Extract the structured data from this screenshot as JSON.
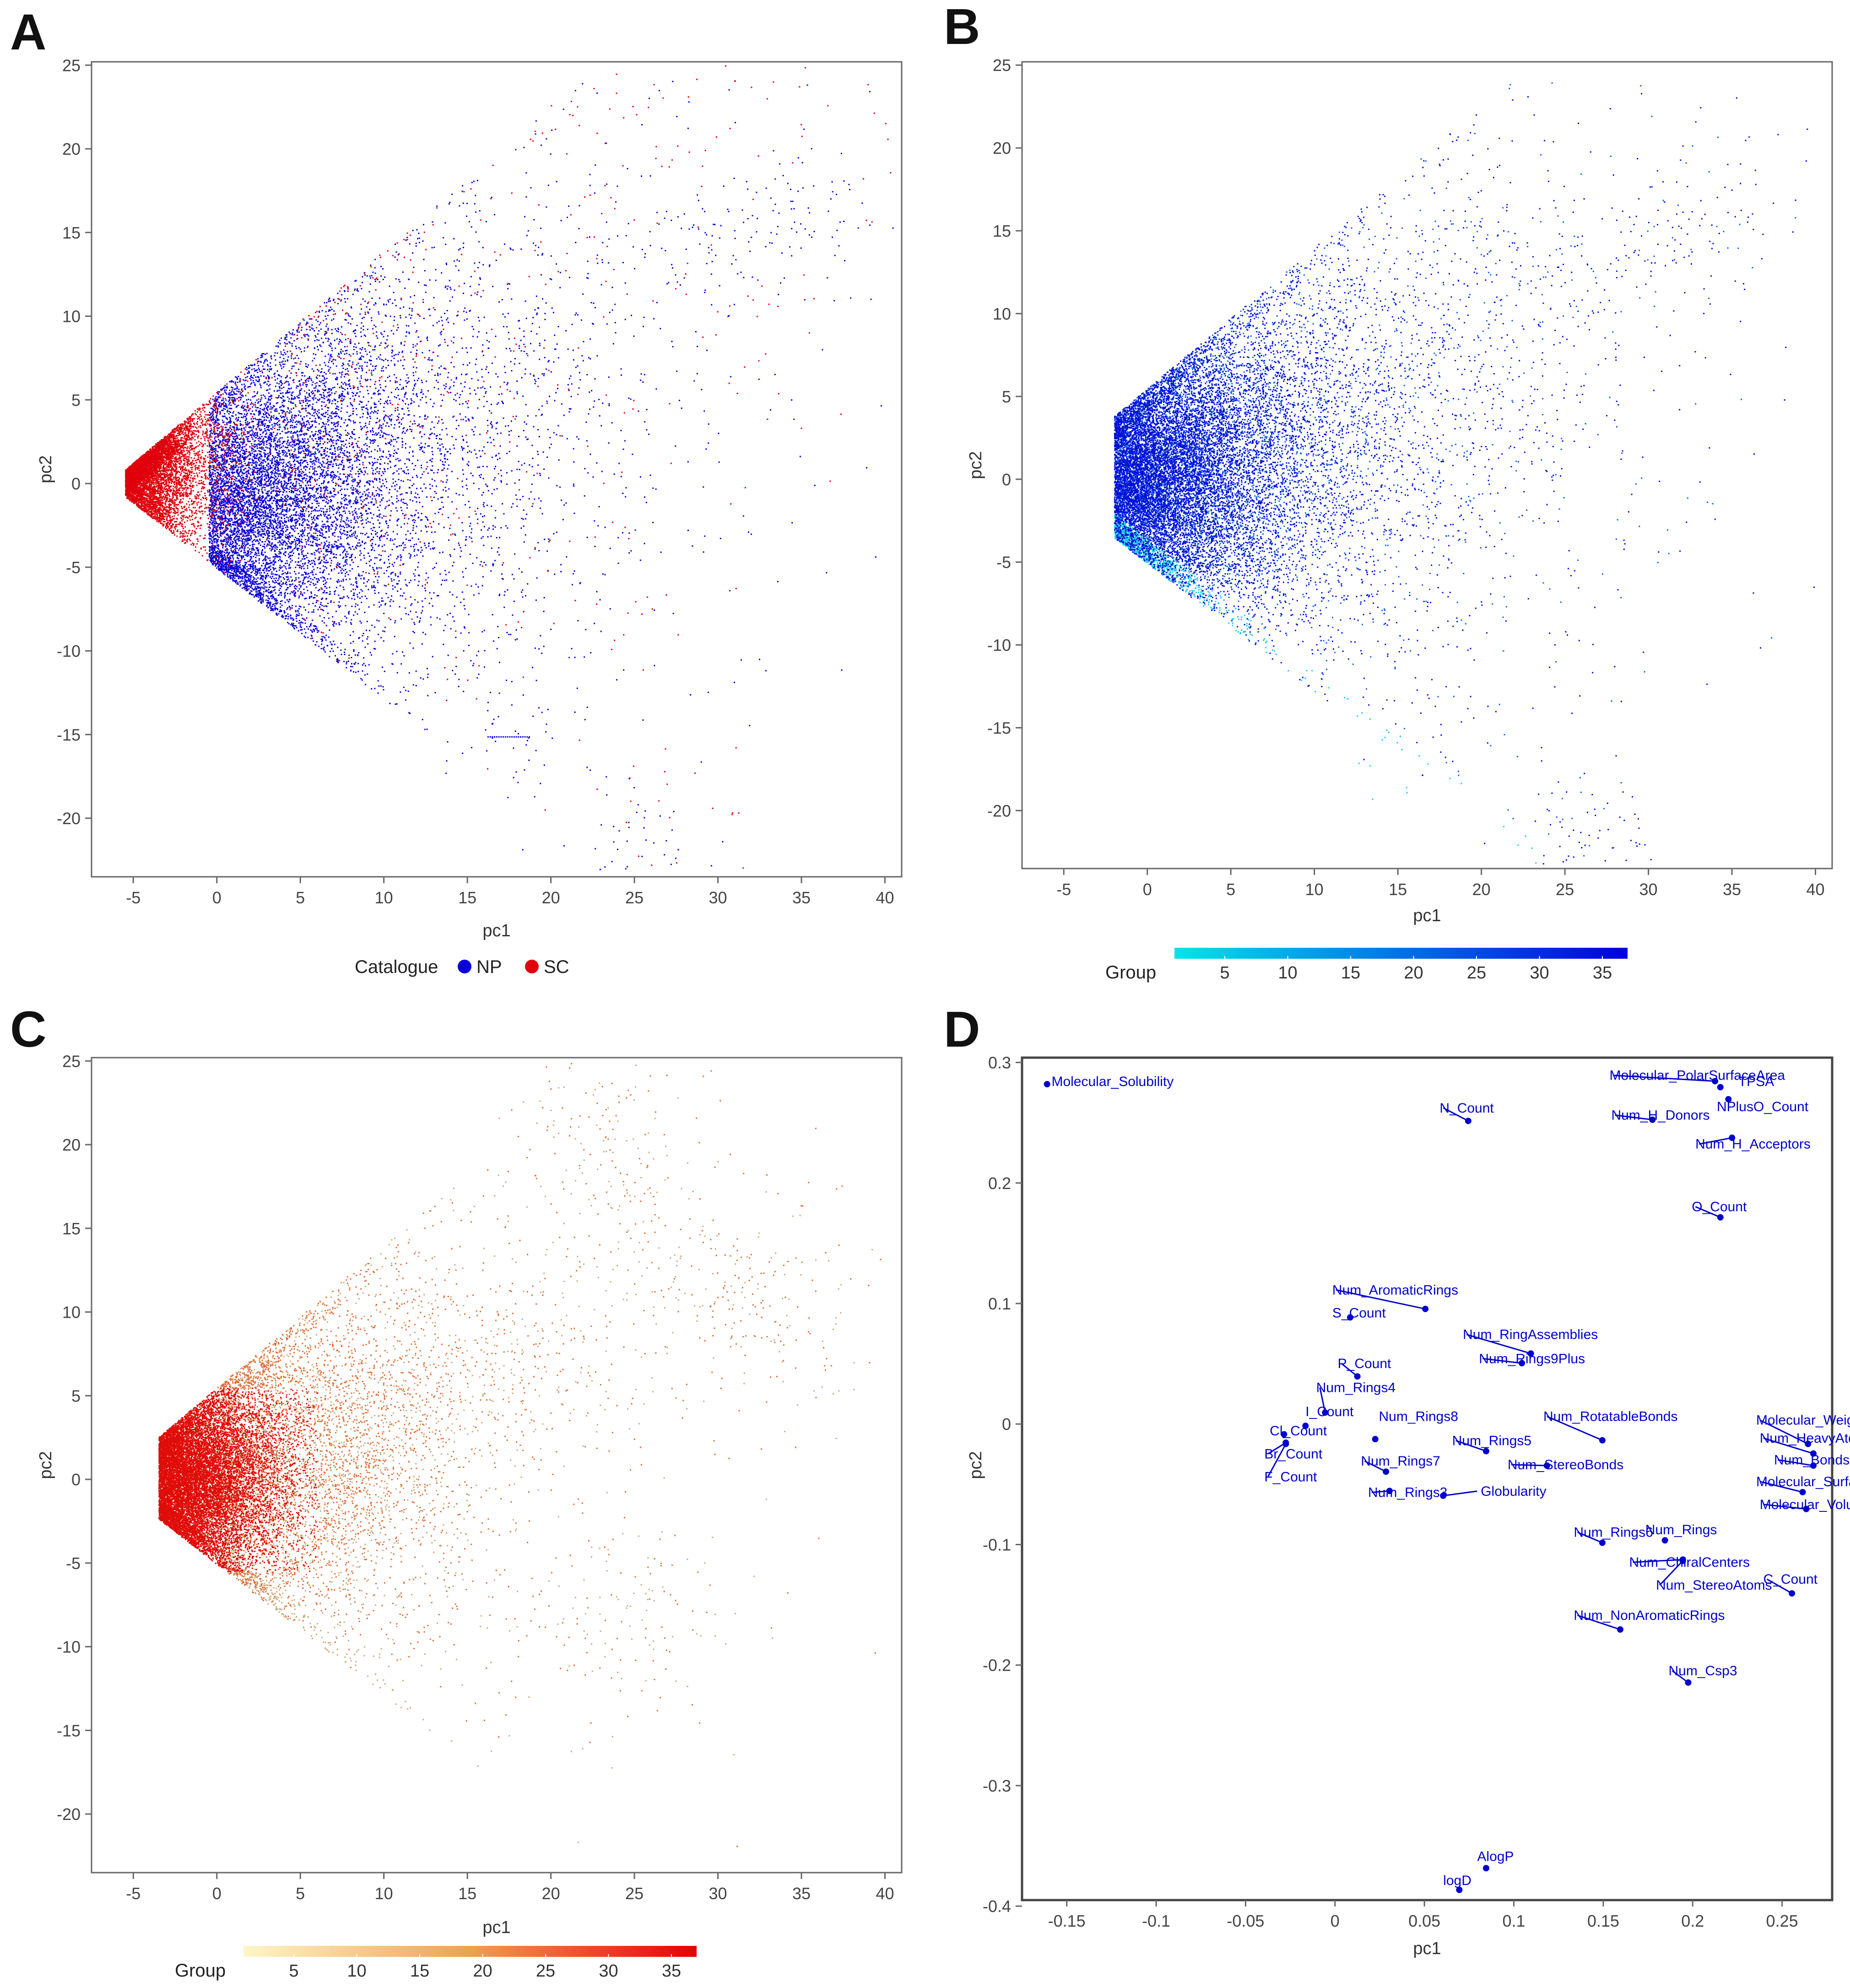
{
  "panels": [
    {
      "letter": "A",
      "xlabel": "pc1",
      "ylabel": "pc2",
      "legend_title": "Catalogue",
      "legend_entries": [
        {
          "label": "NP",
          "color": "#0a00d8"
        },
        {
          "label": "SC",
          "color": "#e0000c"
        }
      ]
    },
    {
      "letter": "B",
      "xlabel": "pc1",
      "ylabel": "pc2",
      "colorbar_title": "Group",
      "colorbar_ticks": [
        "5",
        "10",
        "15",
        "20",
        "25",
        "30",
        "35"
      ],
      "colorbar_colors": [
        "#00e5e8",
        "#0000e0"
      ]
    },
    {
      "letter": "C",
      "xlabel": "pc1",
      "ylabel": "pc2",
      "colorbar_title": "Group",
      "colorbar_ticks": [
        "5",
        "10",
        "15",
        "20",
        "25",
        "30",
        "35"
      ],
      "colorbar_colors": [
        "#fff6c8",
        "#f0a050",
        "#e80000"
      ]
    },
    {
      "letter": "D",
      "xlabel": "pc1",
      "ylabel": "pc2",
      "point_color": "#0000cc"
    }
  ],
  "chart_data": [
    {
      "type": "scatter",
      "panel": "A",
      "xlim": [
        -7.5,
        41
      ],
      "ylim": [
        -23.5,
        25.2
      ],
      "x_ticks": [
        -5,
        0,
        5,
        10,
        15,
        20,
        25,
        30,
        35,
        40
      ],
      "y_ticks": [
        -20,
        -15,
        -10,
        -5,
        0,
        5,
        10,
        15,
        20,
        25
      ],
      "grid": false,
      "legend_placement": "bottom",
      "series": [
        {
          "name": "NP",
          "color": "#0a00d8",
          "main_cloud_center": [
            3,
            -1
          ],
          "points_approx": [
            [
              34.5,
              16.5
            ],
            [
              33.5,
              15.8
            ],
            [
              28,
              13.8
            ],
            [
              23,
              12
            ],
            [
              20,
              8
            ],
            [
              26.8,
              -22.5
            ],
            [
              24,
              -21.5
            ],
            [
              17.5,
              -15
            ],
            [
              30,
              15
            ],
            [
              35,
              17
            ]
          ]
        },
        {
          "name": "SC",
          "color": "#e0000c",
          "main_cloud_center": [
            -2,
            1
          ],
          "points_approx": [
            [
              39.7,
              20
            ],
            [
              33,
              23.5
            ],
            [
              27.5,
              20.2
            ],
            [
              25,
              17
            ],
            [
              22,
              21.5
            ],
            [
              29.5,
              10.5
            ],
            [
              33.5,
              10
            ],
            [
              24.5,
              -8.5
            ],
            [
              28,
              -18.5
            ],
            [
              25,
              -20.5
            ]
          ]
        }
      ]
    },
    {
      "type": "scatter",
      "panel": "B",
      "xlim": [
        -7.5,
        41
      ],
      "ylim": [
        -23.5,
        25.2
      ],
      "x_ticks": [
        -5,
        0,
        5,
        10,
        15,
        20,
        25,
        30,
        35,
        40
      ],
      "y_ticks": [
        -20,
        -15,
        -10,
        -5,
        0,
        5,
        10,
        15,
        20,
        25
      ],
      "grid": false,
      "color_by": "Group",
      "color_range": [
        1,
        37
      ],
      "legend_placement": "bottom"
    },
    {
      "type": "scatter",
      "panel": "C",
      "xlim": [
        -7.5,
        41
      ],
      "ylim": [
        -23.5,
        25.2
      ],
      "x_ticks": [
        -5,
        0,
        5,
        10,
        15,
        20,
        25,
        30,
        35,
        40
      ],
      "y_ticks": [
        -20,
        -15,
        -10,
        -5,
        0,
        5,
        10,
        15,
        20,
        25
      ],
      "grid": false,
      "color_by": "Group",
      "color_range": [
        1,
        37
      ],
      "legend_placement": "bottom"
    },
    {
      "type": "scatter",
      "panel": "D",
      "xlim": [
        -0.175,
        0.278
      ],
      "ylim": [
        -0.395,
        0.304
      ],
      "x_ticks": [
        -0.15,
        -0.1,
        -0.05,
        0,
        0.05,
        0.1,
        0.15,
        0.2,
        0.25
      ],
      "x_tick_labels": [
        "-0.15",
        "-0.1",
        "-0.05",
        "0",
        "0.05",
        "0.1",
        "0.15",
        "0.2",
        "0.25"
      ],
      "y_ticks": [
        -0.4,
        -0.3,
        -0.2,
        -0.1,
        0,
        0.1,
        0.2,
        0.3
      ],
      "y_tick_labels": [
        "-0.4",
        "-0.3",
        "-0.2",
        "-0.1",
        "0",
        "0.1",
        "0.2",
        "0.3"
      ],
      "grid": false,
      "points": [
        {
          "label": "Molecular_Solubility",
          "x": -0.161,
          "y": 0.282,
          "lx": -0.1585,
          "ly": 0.2805
        },
        {
          "label": "Molecular_PolarSurfaceArea",
          "x": 0.2125,
          "y": 0.2845,
          "lx": 0.1535,
          "ly": 0.2855
        },
        {
          "label": "TPSA",
          "x": 0.2155,
          "y": 0.2795,
          "lx": 0.2255,
          "ly": 0.2805
        },
        {
          "label": "NPlusO_Count",
          "x": 0.22,
          "y": 0.2695,
          "lx": 0.2135,
          "ly": 0.2595
        },
        {
          "label": "Num_H_Donors",
          "x": 0.1775,
          "y": 0.2525,
          "lx": 0.1545,
          "ly": 0.2525
        },
        {
          "label": "N_Count",
          "x": 0.0745,
          "y": 0.2515,
          "lx": 0.0585,
          "ly": 0.2585
        },
        {
          "label": "Num_H_Acceptors",
          "x": 0.222,
          "y": 0.2375,
          "lx": 0.2015,
          "ly": 0.2285
        },
        {
          "label": "O_Count",
          "x": 0.2155,
          "y": 0.1715,
          "lx": 0.1995,
          "ly": 0.1765
        },
        {
          "label": "Num_AromaticRings",
          "x": 0.0505,
          "y": 0.0955,
          "lx": -0.0015,
          "ly": 0.1075
        },
        {
          "label": "S_Count",
          "x": 0.0085,
          "y": 0.0885,
          "lx": -0.0015,
          "ly": 0.0885
        },
        {
          "label": "Num_RingAssemblies",
          "x": 0.1095,
          "y": 0.0585,
          "lx": 0.0715,
          "ly": 0.0705
        },
        {
          "label": "Num_Rings9Plus",
          "x": 0.1045,
          "y": 0.0505,
          "lx": 0.0805,
          "ly": 0.0505
        },
        {
          "label": "P_Count",
          "x": 0.0125,
          "y": 0.0395,
          "lx": 0.0015,
          "ly": 0.0465
        },
        {
          "label": "Num_Rings4",
          "x": -0.0055,
          "y": 0.0095,
          "lx": -0.0105,
          "ly": 0.0265
        },
        {
          "label": "I_Count",
          "x": -0.0165,
          "y": -0.0015,
          "lx": -0.0165,
          "ly": 0.0065
        },
        {
          "label": "Cl_Count",
          "x": -0.0285,
          "y": -0.0085,
          "lx": -0.0365,
          "ly": -0.0095
        },
        {
          "label": "Num_Rings8",
          "x": 0.0225,
          "y": -0.0125,
          "lx": 0.0245,
          "ly": 0.0025
        },
        {
          "label": "Br_Count",
          "x": -0.0275,
          "y": -0.0155,
          "lx": -0.0395,
          "ly": -0.0285
        },
        {
          "label": "F_Count",
          "x": -0.0275,
          "y": -0.0165,
          "lx": -0.0395,
          "ly": -0.0475
        },
        {
          "label": "Num_Rings5",
          "x": 0.0845,
          "y": -0.0225,
          "lx": 0.0655,
          "ly": -0.0175
        },
        {
          "label": "Num_RotatableBonds",
          "x": 0.1495,
          "y": -0.0135,
          "lx": 0.1165,
          "ly": 0.0025
        },
        {
          "label": "Num_Rings7",
          "x": 0.0285,
          "y": -0.0395,
          "lx": 0.0145,
          "ly": -0.0345
        },
        {
          "label": "Num_StereoBonds",
          "x": 0.1185,
          "y": -0.0345,
          "lx": 0.0965,
          "ly": -0.0375
        },
        {
          "label": "Num_Rings3",
          "x": 0.0305,
          "y": -0.0555,
          "lx": 0.0185,
          "ly": -0.0605
        },
        {
          "label": "Globularity",
          "x": 0.0605,
          "y": -0.0595,
          "lx": 0.0815,
          "ly": -0.0595
        },
        {
          "label": "Molecular_Weight",
          "x": 0.2645,
          "y": -0.0165,
          "lx": 0.2355,
          "ly": -0.0005
        },
        {
          "label": "Num_HeavyAtoms",
          "x": 0.2675,
          "y": -0.0245,
          "lx": 0.2375,
          "ly": -0.0155
        },
        {
          "label": "Num_Bonds",
          "x": 0.2675,
          "y": -0.0345,
          "lx": 0.2455,
          "ly": -0.0335
        },
        {
          "label": "Molecular_SurfaceArea",
          "x": 0.2615,
          "y": -0.0565,
          "lx": 0.2355,
          "ly": -0.0515
        },
        {
          "label": "Molecular_Volume",
          "x": 0.2635,
          "y": -0.0705,
          "lx": 0.2375,
          "ly": -0.0705
        },
        {
          "label": "Num_Rings6",
          "x": 0.1495,
          "y": -0.0985,
          "lx": 0.1335,
          "ly": -0.0935
        },
        {
          "label": "Num_Rings",
          "x": 0.1845,
          "y": -0.0965,
          "lx": 0.1735,
          "ly": -0.0915
        },
        {
          "label": "Num_ChiralCenters",
          "x": 0.1945,
          "y": -0.1125,
          "lx": 0.1645,
          "ly": -0.1185
        },
        {
          "label": "Num_StereoAtoms",
          "x": 0.1945,
          "y": -0.1135,
          "lx": 0.1795,
          "ly": -0.1375
        },
        {
          "label": "C_Count",
          "x": 0.2555,
          "y": -0.1405,
          "lx": 0.2395,
          "ly": -0.1325
        },
        {
          "label": "Num_NonAromaticRings",
          "x": 0.1595,
          "y": -0.1705,
          "lx": 0.1335,
          "ly": -0.1625
        },
        {
          "label": "Num_Csp3",
          "x": 0.1975,
          "y": -0.2145,
          "lx": 0.1865,
          "ly": -0.2085
        },
        {
          "label": "AlogP",
          "x": 0.0845,
          "y": -0.3685,
          "lx": 0.0795,
          "ly": -0.3625
        },
        {
          "label": "logD",
          "x": 0.0695,
          "y": -0.3865,
          "lx": 0.0605,
          "ly": -0.3825
        }
      ]
    }
  ]
}
